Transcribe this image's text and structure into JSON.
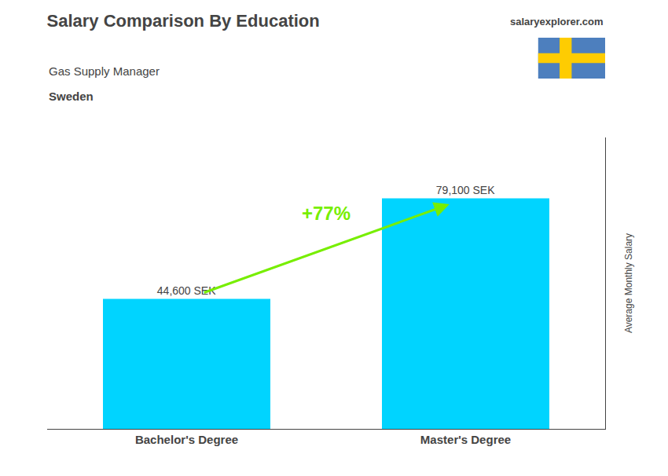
{
  "chart_data": {
    "type": "bar",
    "title": "Salary Comparison By Education",
    "subtitle": "Gas Supply Manager",
    "ylabel": "Average Monthly Salary",
    "categories": [
      "Bachelor's Degree",
      "Master's Degree"
    ],
    "values": [
      44600,
      79100
    ],
    "value_labels": [
      "44,600 SEK",
      "79,100 SEK"
    ],
    "data_labels": true,
    "color": "#00d4ff",
    "ylim": [
      0,
      100000
    ],
    "grid": false,
    "tick_labels": "x",
    "annotations": [
      {
        "text": "Sweden"
      },
      {
        "text": "salaryexplorer.com"
      },
      {
        "text": "+77%",
        "color": "#77ee00"
      }
    ]
  }
}
